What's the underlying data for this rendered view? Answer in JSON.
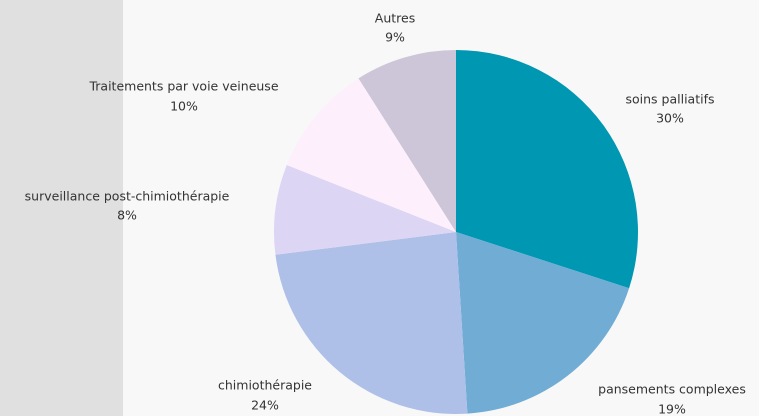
{
  "chart_data": {
    "type": "pie",
    "categories": [
      "soins palliatifs",
      "pansements complexes",
      "chimiothérapie",
      "surveillance post-chimiothérapie",
      "Traitements par voie veineuse",
      "Autres"
    ],
    "values": [
      30,
      19,
      24,
      8,
      10,
      9
    ],
    "value_labels": [
      "30%",
      "19%",
      "24%",
      "8%",
      "10%",
      "9%"
    ],
    "colors": [
      "#0097b2",
      "#70acd4",
      "#aec0e8",
      "#ddd5f4",
      "#fdf0fc",
      "#cdc6d8"
    ]
  }
}
